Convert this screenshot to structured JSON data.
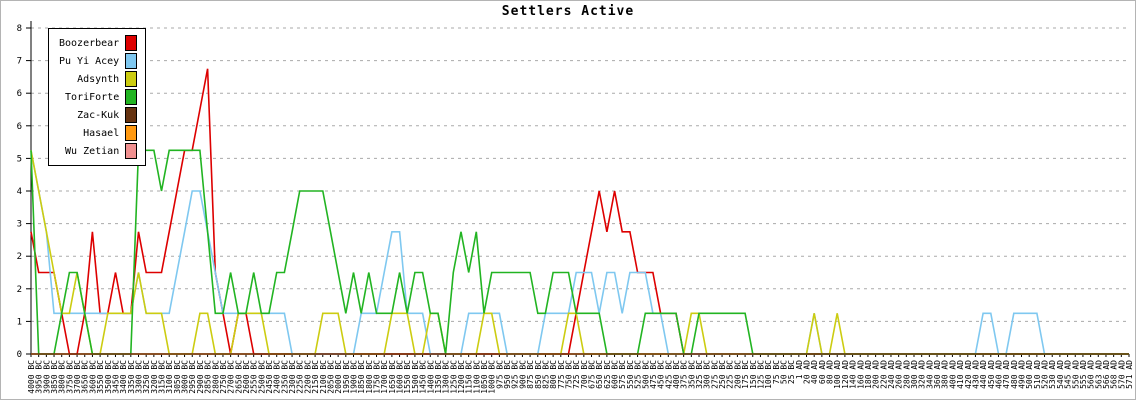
{
  "title": "Settlers Active",
  "legend": {
    "entries": [
      {
        "label": "Boozerbear",
        "color": "#dd0000"
      },
      {
        "label": "Pu Yi Acey",
        "color": "#7fc8f0"
      },
      {
        "label": "Adsynth",
        "color": "#cccc11"
      },
      {
        "label": "ToriForte",
        "color": "#22b422"
      },
      {
        "label": "Zac-Kuk",
        "color": "#663311"
      },
      {
        "label": "Hasael",
        "color": "#ff9911"
      },
      {
        "label": "Wu Zetian",
        "color": "#f09090"
      }
    ]
  },
  "chart_data": {
    "type": "line",
    "title": "Settlers Active",
    "grid": "horizontal-dashed",
    "legend_position": "top-left",
    "y_axis": {
      "min": 0,
      "max": 8,
      "gridline_step": 0.8,
      "tick_labels_bottom_to_top": [
        "0",
        "1",
        "2",
        "2",
        "3",
        "4",
        "5",
        "6",
        "6",
        "7",
        "8"
      ]
    },
    "x_labels": [
      "4000 BC",
      "3950 BC",
      "3900 BC",
      "3850 BC",
      "3800 BC",
      "3750 BC",
      "3700 BC",
      "3650 BC",
      "3600 BC",
      "3550 BC",
      "3500 BC",
      "3450 BC",
      "3400 BC",
      "3350 BC",
      "3300 BC",
      "3250 BC",
      "3200 BC",
      "3150 BC",
      "3100 BC",
      "3050 BC",
      "3000 BC",
      "2950 BC",
      "2900 BC",
      "2850 BC",
      "2800 BC",
      "2750 BC",
      "2700 BC",
      "2650 BC",
      "2600 BC",
      "2550 BC",
      "2500 BC",
      "2450 BC",
      "2400 BC",
      "2350 BC",
      "2300 BC",
      "2250 BC",
      "2200 BC",
      "2150 BC",
      "2100 BC",
      "2050 BC",
      "2000 BC",
      "1950 BC",
      "1900 BC",
      "1850 BC",
      "1800 BC",
      "1750 BC",
      "1700 BC",
      "1650 BC",
      "1600 BC",
      "1550 BC",
      "1500 BC",
      "1450 BC",
      "1400 BC",
      "1350 BC",
      "1300 BC",
      "1250 BC",
      "1200 BC",
      "1150 BC",
      "1100 BC",
      "1050 BC",
      "1000 BC",
      "975 BC",
      "950 BC",
      "925 BC",
      "900 BC",
      "875 BC",
      "850 BC",
      "825 BC",
      "800 BC",
      "775 BC",
      "750 BC",
      "725 BC",
      "700 BC",
      "675 BC",
      "650 BC",
      "625 BC",
      "600 BC",
      "575 BC",
      "550 BC",
      "525 BC",
      "500 BC",
      "475 BC",
      "450 BC",
      "425 BC",
      "400 BC",
      "375 BC",
      "350 BC",
      "325 BC",
      "300 BC",
      "275 BC",
      "250 BC",
      "225 BC",
      "200 BC",
      "175 BC",
      "150 BC",
      "125 BC",
      "100 BC",
      "75 BC",
      "50 BC",
      "25 BC",
      "1 AD",
      "20 AD",
      "40 AD",
      "60 AD",
      "80 AD",
      "100 AD",
      "120 AD",
      "140 AD",
      "160 AD",
      "180 AD",
      "200 AD",
      "220 AD",
      "240 AD",
      "260 AD",
      "280 AD",
      "300 AD",
      "320 AD",
      "340 AD",
      "360 AD",
      "380 AD",
      "400 AD",
      "410 AD",
      "420 AD",
      "430 AD",
      "440 AD",
      "450 AD",
      "460 AD",
      "470 AD",
      "480 AD",
      "490 AD",
      "500 AD",
      "510 AD",
      "520 AD",
      "530 AD",
      "540 AD",
      "545 AD",
      "550 AD",
      "555 AD",
      "560 AD",
      "563 AD",
      "566 AD",
      "568 AD",
      "570 AD",
      "571 AD"
    ],
    "series": [
      {
        "name": "Boozerbear",
        "color": "#dd0000",
        "values": [
          3,
          2,
          2,
          2,
          1,
          0,
          0,
          1,
          3,
          1,
          1,
          2,
          1,
          1,
          3,
          2,
          2,
          2,
          3,
          4,
          5,
          5,
          6,
          7,
          2,
          1,
          0,
          1,
          1,
          0,
          0,
          0,
          0,
          0,
          0,
          0,
          0,
          0,
          0,
          0,
          0,
          0,
          0,
          0,
          0,
          0,
          0,
          0,
          0,
          0,
          0,
          0,
          0,
          0,
          0,
          0,
          0,
          0,
          0,
          0,
          0,
          0,
          0,
          0,
          0,
          0,
          0,
          0,
          0,
          0,
          0,
          1,
          2,
          3,
          4,
          3,
          4,
          3,
          3,
          2,
          2,
          2,
          1,
          1,
          1,
          0,
          0,
          0,
          0,
          0,
          0,
          0,
          0,
          0,
          0,
          0,
          0,
          0,
          0,
          0,
          0,
          0,
          0,
          0,
          0,
          0,
          0,
          0,
          0,
          0,
          0,
          0,
          0,
          0,
          0,
          0,
          0,
          0,
          0,
          0,
          0,
          0,
          0,
          0,
          0,
          0,
          0,
          0,
          0,
          0,
          0,
          0,
          0,
          0,
          0,
          0,
          0,
          0,
          0,
          0,
          0,
          0,
          0,
          0
        ]
      },
      {
        "name": "Pu Yi Acey",
        "color": "#7fc8f0",
        "values": [
          5,
          4,
          3,
          1,
          1,
          1,
          1,
          1,
          1,
          1,
          1,
          1,
          1,
          1,
          2,
          1,
          1,
          1,
          1,
          2,
          3,
          4,
          4,
          3,
          2,
          1,
          1,
          1,
          1,
          1,
          1,
          1,
          1,
          1,
          0,
          0,
          0,
          0,
          0,
          0,
          0,
          0,
          0,
          1,
          1,
          1,
          2,
          3,
          3,
          1,
          1,
          1,
          0,
          0,
          0,
          0,
          0,
          1,
          1,
          1,
          1,
          1,
          0,
          0,
          0,
          0,
          0,
          1,
          1,
          1,
          1,
          2,
          2,
          2,
          1,
          2,
          2,
          1,
          2,
          2,
          2,
          1,
          1,
          0,
          0,
          0,
          0,
          0,
          0,
          0,
          0,
          0,
          0,
          0,
          0,
          0,
          0,
          0,
          0,
          0,
          0,
          0,
          1,
          0,
          0,
          0,
          0,
          0,
          0,
          0,
          0,
          0,
          0,
          0,
          0,
          0,
          0,
          0,
          0,
          0,
          0,
          0,
          0,
          0,
          1,
          1,
          0,
          0,
          1,
          1,
          1,
          1,
          0,
          0,
          0,
          0,
          0,
          0,
          0,
          0,
          0,
          0,
          0,
          0
        ]
      },
      {
        "name": "Adsynth",
        "color": "#cccc11",
        "values": [
          5,
          4,
          3,
          2,
          1,
          1,
          2,
          1,
          0,
          0,
          1,
          1,
          1,
          1,
          2,
          1,
          1,
          1,
          0,
          0,
          0,
          0,
          1,
          1,
          0,
          0,
          0,
          1,
          1,
          1,
          1,
          0,
          0,
          0,
          0,
          0,
          0,
          0,
          1,
          1,
          1,
          0,
          0,
          0,
          0,
          0,
          0,
          1,
          1,
          1,
          0,
          0,
          1,
          1,
          0,
          0,
          0,
          0,
          0,
          1,
          1,
          0,
          0,
          0,
          0,
          0,
          0,
          0,
          0,
          0,
          1,
          1,
          0,
          0,
          0,
          0,
          0,
          0,
          0,
          0,
          0,
          0,
          0,
          0,
          0,
          0,
          1,
          1,
          0,
          0,
          0,
          0,
          0,
          0,
          0,
          0,
          0,
          0,
          0,
          0,
          0,
          0,
          1,
          0,
          0,
          1,
          0,
          0,
          0,
          0,
          0,
          0,
          0,
          0,
          0,
          0,
          0,
          0,
          0,
          0,
          0,
          0,
          0,
          0,
          0,
          0,
          0,
          0,
          0,
          0,
          0,
          0,
          0,
          0,
          0,
          0,
          0,
          0,
          0,
          0,
          0,
          0,
          0,
          0
        ]
      },
      {
        "name": "ToriForte",
        "color": "#22b422",
        "values": [
          5,
          0,
          0,
          0,
          1,
          2,
          2,
          1,
          0,
          0,
          0,
          0,
          0,
          0,
          5,
          5,
          5,
          4,
          5,
          5,
          5,
          5,
          5,
          3,
          1,
          1,
          2,
          1,
          1,
          2,
          1,
          1,
          2,
          2,
          3,
          4,
          4,
          4,
          4,
          3,
          2,
          1,
          2,
          1,
          2,
          1,
          1,
          1,
          2,
          1,
          2,
          2,
          1,
          1,
          0,
          2,
          3,
          2,
          3,
          1,
          2,
          2,
          2,
          2,
          2,
          2,
          1,
          1,
          2,
          2,
          2,
          1,
          1,
          1,
          1,
          0,
          0,
          0,
          0,
          0,
          1,
          1,
          1,
          1,
          1,
          0,
          0,
          1,
          1,
          1,
          1,
          1,
          1,
          1,
          0,
          0,
          0,
          0,
          0,
          0,
          0,
          0,
          0,
          0,
          0,
          0,
          0,
          0,
          0,
          0,
          0,
          0,
          0,
          0,
          0,
          0,
          0,
          0,
          0,
          0,
          0,
          0,
          0,
          0,
          0,
          0,
          0,
          0,
          0,
          0,
          0,
          0,
          0,
          0,
          0,
          0,
          0,
          0,
          0,
          0,
          0,
          0,
          0,
          0
        ]
      },
      {
        "name": "Zac-Kuk",
        "color": "#663311",
        "values": [
          0,
          0,
          0,
          0,
          0,
          0,
          0,
          0,
          0,
          0,
          0,
          0,
          0,
          0,
          0,
          0,
          0,
          0,
          0,
          0,
          0,
          0,
          0,
          0,
          0,
          0,
          0,
          0,
          0,
          0,
          0,
          0,
          0,
          0,
          0,
          0,
          0,
          0,
          0,
          0,
          0,
          0,
          0,
          0,
          0,
          0,
          0,
          0,
          0,
          0,
          0,
          0,
          0,
          0,
          0,
          0,
          0,
          0,
          0,
          0,
          0,
          0,
          0,
          0,
          0,
          0,
          0,
          0,
          0,
          0,
          0,
          0,
          0,
          0,
          0,
          0,
          0,
          0,
          0,
          0,
          0,
          0,
          0,
          0,
          0,
          0,
          0,
          0,
          0,
          0,
          0,
          0,
          0,
          0,
          0,
          0,
          0,
          0,
          0,
          0,
          0,
          0,
          0,
          0,
          0,
          0,
          0,
          0,
          0,
          0,
          0,
          0,
          0,
          0,
          0,
          0,
          0,
          0,
          0,
          0,
          0,
          0,
          0,
          0,
          0,
          0,
          0,
          0,
          0,
          0,
          0,
          0,
          0,
          0,
          0,
          0,
          0,
          0,
          0,
          0,
          0,
          0,
          0,
          0
        ]
      },
      {
        "name": "Hasael",
        "color": "#ff9911",
        "values": [
          0,
          0,
          0,
          0,
          0,
          0,
          0,
          0,
          0,
          0,
          0,
          0,
          0,
          0,
          0,
          0,
          0,
          0,
          0,
          0,
          0,
          0,
          0,
          0,
          0,
          0,
          0,
          0,
          0,
          0,
          0,
          0,
          0,
          0,
          0,
          0,
          0,
          0,
          0,
          0,
          0,
          0,
          0,
          0,
          0,
          0,
          0,
          0,
          0,
          0,
          0,
          0,
          0,
          0,
          0,
          0,
          0,
          0,
          0,
          0,
          0,
          0,
          0,
          0,
          0,
          0,
          0,
          0,
          0,
          0,
          0,
          0,
          0,
          0,
          0,
          0,
          0,
          0,
          0,
          0,
          0,
          0,
          0,
          0,
          0,
          0,
          0,
          0,
          0,
          0,
          0,
          0,
          0,
          0,
          0,
          0,
          0,
          0,
          0,
          0,
          0,
          0,
          0,
          0,
          0,
          0,
          0,
          0,
          0,
          0,
          0,
          0,
          0,
          0,
          0,
          0,
          0,
          0,
          0,
          0,
          0,
          0,
          0,
          0,
          0,
          0,
          0,
          0,
          0,
          0,
          0,
          0,
          0,
          0,
          0,
          0,
          0,
          0,
          0,
          0,
          0,
          0,
          0,
          0
        ]
      },
      {
        "name": "Wu Zetian",
        "color": "#f09090",
        "values": [
          0,
          0,
          0,
          0,
          0,
          0,
          0,
          0,
          0,
          0,
          0,
          0,
          0,
          0,
          0,
          0,
          0,
          0,
          0,
          0,
          0,
          0,
          0,
          0,
          0,
          0,
          0,
          0,
          0,
          0,
          0,
          0,
          0,
          0,
          0,
          0,
          0,
          0,
          0,
          0,
          0,
          0,
          0,
          0,
          0,
          0,
          0,
          0,
          0,
          0,
          0,
          0,
          0,
          0,
          0,
          0,
          0,
          0,
          0,
          0,
          0,
          0,
          0,
          0,
          0,
          0,
          0,
          0,
          0,
          0,
          0,
          0,
          0,
          0,
          0,
          0,
          0,
          0,
          0,
          0,
          0,
          0,
          0,
          0,
          0,
          0,
          0,
          0,
          0,
          0,
          0,
          0,
          0,
          0,
          0,
          0,
          0,
          0,
          0,
          0,
          0,
          0,
          0,
          0,
          0,
          0,
          0,
          0,
          0,
          0,
          0,
          0,
          0,
          0,
          0,
          0,
          0,
          0,
          0,
          0,
          0,
          0,
          0,
          0,
          0,
          0,
          0,
          0,
          0,
          0,
          0,
          0,
          0,
          0,
          0,
          0,
          0,
          0,
          0,
          0,
          0,
          0,
          0,
          0
        ]
      }
    ]
  }
}
